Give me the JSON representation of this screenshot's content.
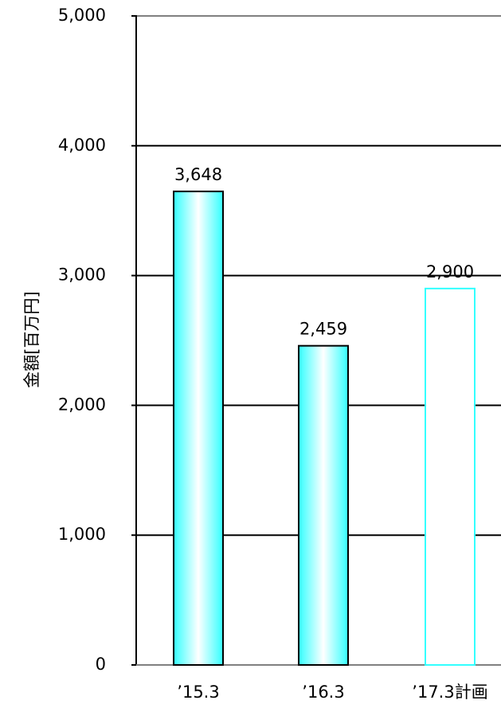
{
  "chart_data": {
    "type": "bar",
    "categories": [
      "’15.3",
      "’16.3",
      "’17.3計画"
    ],
    "values": [
      3648,
      2459,
      2900
    ],
    "data_labels": [
      "3,648",
      "2,459",
      "2,900"
    ],
    "ylabel": "金額[百万円]",
    "xlabel": "",
    "ylim": [
      0,
      5000
    ],
    "yticks": [
      0,
      1000,
      2000,
      3000,
      4000,
      5000
    ],
    "ytick_labels": [
      "0",
      "1,000",
      "2,000",
      "3,000",
      "4,000",
      "5,000"
    ],
    "grid": true,
    "bar_styles": [
      "gradient",
      "gradient",
      "outline"
    ],
    "colors": {
      "bar_fill": "#33FFFF",
      "bar_highlight": "#FFFFFF",
      "bar_border": "#000000",
      "plan_border": "#33FFFF",
      "grid": "#000000",
      "top_border": "#808080"
    }
  }
}
